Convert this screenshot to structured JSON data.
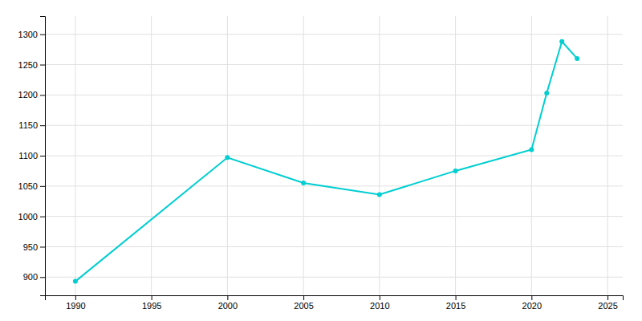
{
  "chart_data": {
    "type": "line",
    "x": [
      1990,
      2000,
      2005,
      2010,
      2015,
      2020,
      2021,
      2022,
      2023
    ],
    "values": [
      893,
      1097,
      1055,
      1036,
      1075,
      1110,
      1203,
      1288,
      1260
    ],
    "color": "#00CED1",
    "marker": "circle",
    "xlim": [
      1988,
      2026
    ],
    "ylim": [
      870,
      1330
    ],
    "xticks": [
      1990,
      1995,
      2000,
      2005,
      2010,
      2015,
      2020,
      2025
    ],
    "yticks": [
      900,
      950,
      1000,
      1050,
      1100,
      1150,
      1200,
      1250,
      1300
    ],
    "grid": true
  }
}
